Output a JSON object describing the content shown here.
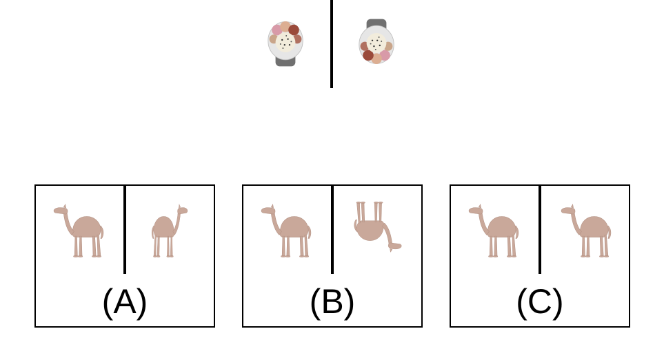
{
  "reference": {
    "left_object": "dessert-plate-icon",
    "right_object": "dessert-plate-icon"
  },
  "options": [
    {
      "label": "(A)",
      "left": "camel-icon",
      "right": "camel-icon"
    },
    {
      "label": "(B)",
      "left": "camel-icon",
      "right": "camel-icon"
    },
    {
      "label": "(C)",
      "left": "camel-icon",
      "right": "camel-icon"
    }
  ],
  "colors": {
    "camel": "#c9a89a",
    "plate": "#e6e6e6",
    "plate_stand": "#707070",
    "line": "#000000"
  }
}
